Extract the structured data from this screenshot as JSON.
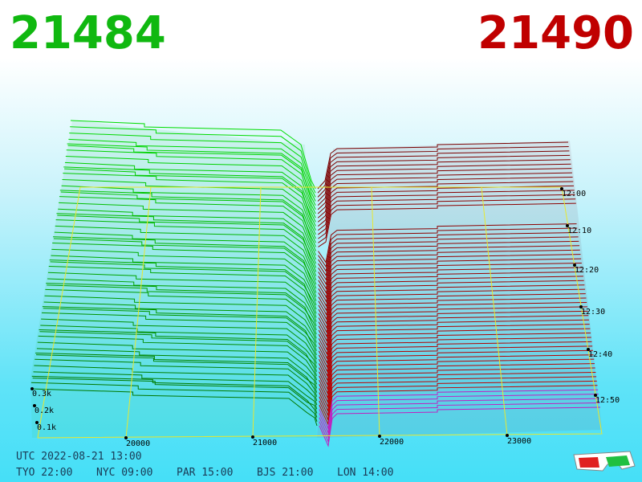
{
  "header": {
    "bid": "21484",
    "ask": "21490"
  },
  "axes": {
    "price_labels": [
      "20000",
      "21000",
      "22000",
      "23000"
    ],
    "time_labels": [
      "12:00",
      "12:10",
      "12:20",
      "12:30",
      "12:40",
      "12:50"
    ],
    "volume_labels": [
      "0.3k",
      "0.2k",
      "0.1k"
    ]
  },
  "footer": {
    "utc": "UTC 2022-08-21 13:00",
    "cities": [
      "TYO 22:00",
      "NYC 09:00",
      "PAR 15:00",
      "BJS 21:00",
      "LON 14:00"
    ]
  }
}
